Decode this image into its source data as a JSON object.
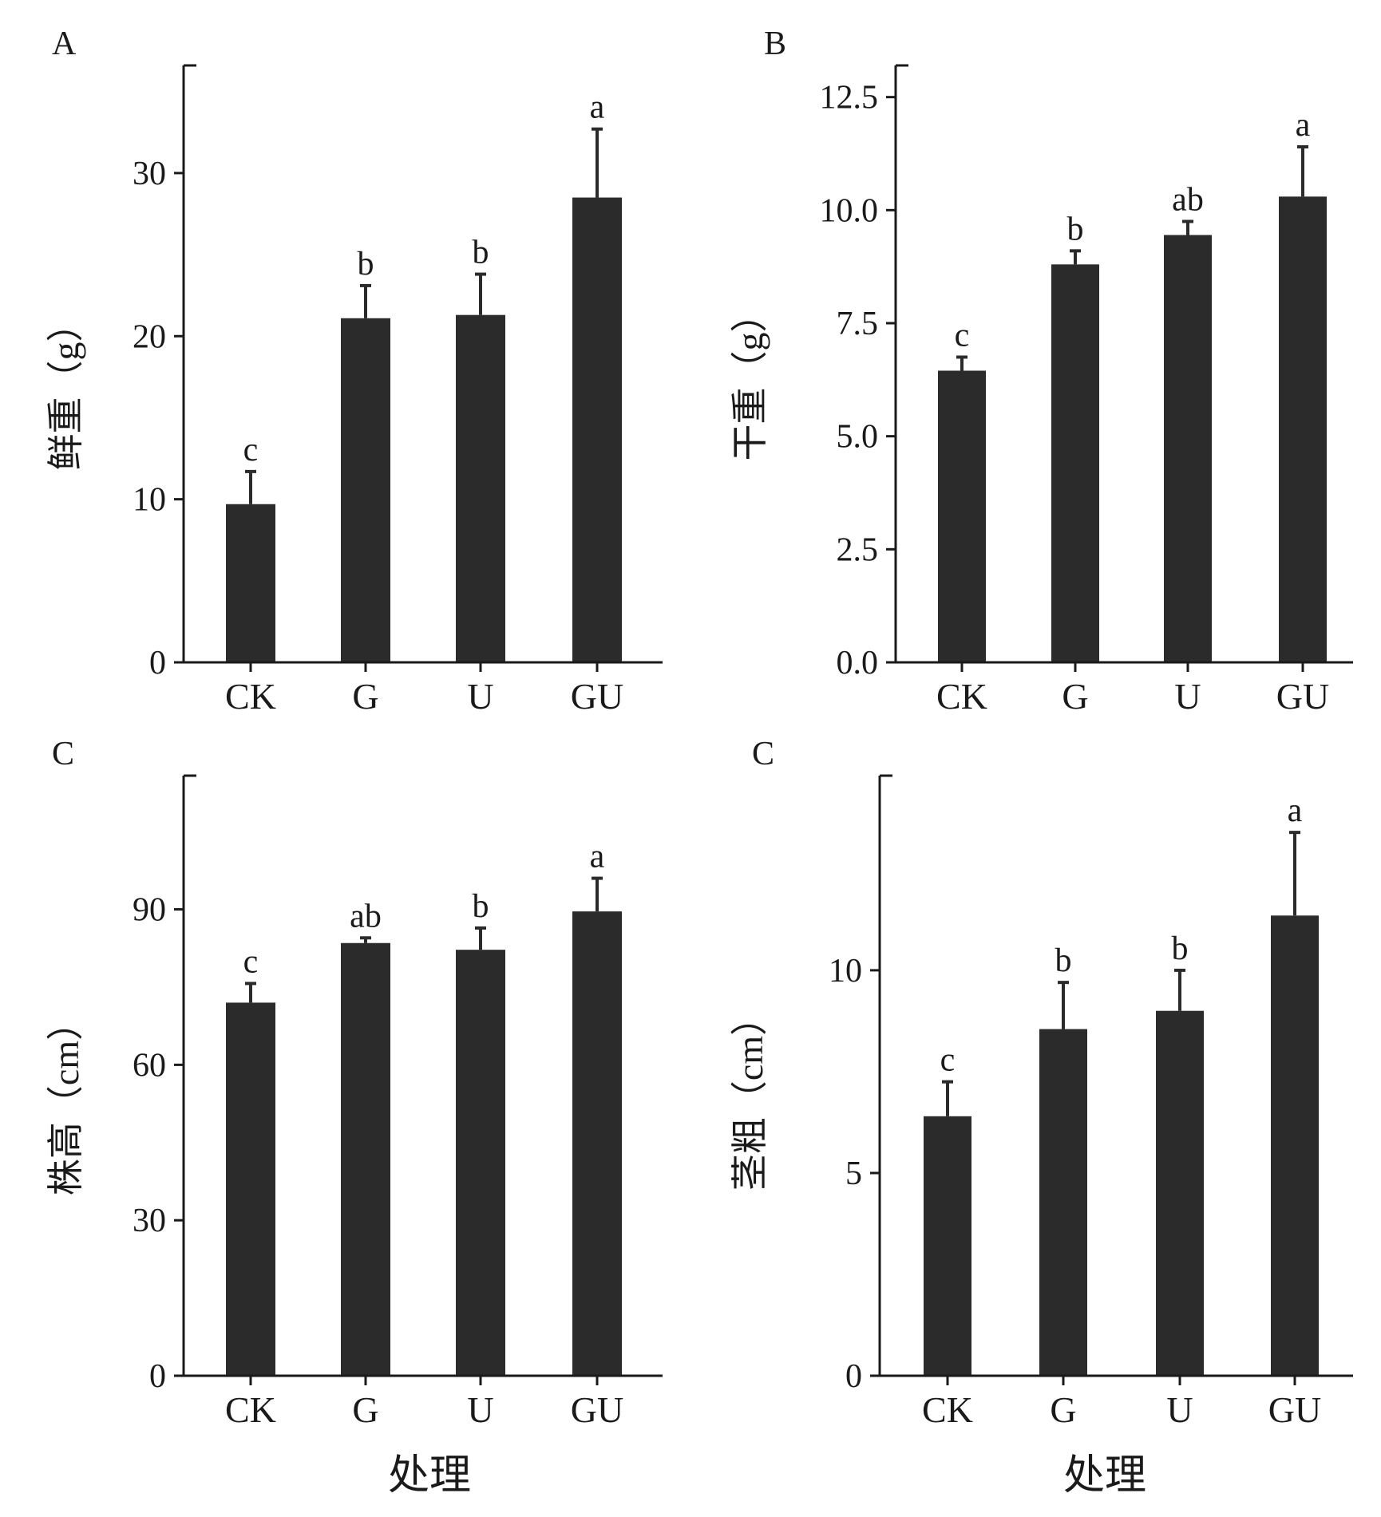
{
  "chart_data": [
    {
      "type": "bar",
      "panel_label": "A",
      "categories": [
        "CK",
        "G",
        "U",
        "GU"
      ],
      "values": [
        9.7,
        21.1,
        21.3,
        28.5
      ],
      "errors": [
        2.0,
        2.0,
        2.5,
        4.2
      ],
      "significance": [
        "c",
        "b",
        "b",
        "a"
      ],
      "ylabel": "鲜重（g）",
      "xlabel": "",
      "ylim": [
        0,
        36.6
      ],
      "yticks": [
        0,
        10,
        20,
        30
      ],
      "ytick_labels": [
        "0",
        "10",
        "20",
        "30"
      ]
    },
    {
      "type": "bar",
      "panel_label": "B",
      "categories": [
        "CK",
        "G",
        "U",
        "GU"
      ],
      "values": [
        6.45,
        8.8,
        9.45,
        10.3
      ],
      "errors": [
        0.3,
        0.3,
        0.3,
        1.1
      ],
      "significance": [
        "c",
        "b",
        "ab",
        "a"
      ],
      "ylabel": "干重（g）",
      "xlabel": "",
      "ylim": [
        0,
        13.2
      ],
      "yticks": [
        0,
        2.5,
        5,
        7.5,
        10,
        12.5
      ],
      "ytick_labels": [
        "0.0",
        "2.5",
        "5.0",
        "7.5",
        "10.0",
        "12.5"
      ]
    },
    {
      "type": "bar",
      "panel_label": "C",
      "categories": [
        "CK",
        "G",
        "U",
        "GU"
      ],
      "values": [
        72,
        83.5,
        82.2,
        89.6
      ],
      "errors": [
        3.7,
        1.0,
        4.2,
        6.4
      ],
      "significance": [
        "c",
        "ab",
        "b",
        "a"
      ],
      "ylabel": "株高（cm）",
      "xlabel": "处理",
      "ylim": [
        0,
        115.8
      ],
      "yticks": [
        0,
        30,
        60,
        90
      ],
      "ytick_labels": [
        "0",
        "30",
        "60",
        "90"
      ]
    },
    {
      "type": "bar",
      "panel_label": "C",
      "categories": [
        "CK",
        "G",
        "U",
        "GU"
      ],
      "values": [
        6.4,
        8.55,
        9.0,
        11.35
      ],
      "errors": [
        0.85,
        1.15,
        1.0,
        2.05
      ],
      "significance": [
        "c",
        "b",
        "b",
        "a"
      ],
      "ylabel": "茎粗（cm）",
      "xlabel": "处理",
      "ylim": [
        0,
        14.8
      ],
      "yticks": [
        0,
        5,
        10
      ],
      "ytick_labels": [
        "0",
        "5",
        "10"
      ]
    }
  ]
}
